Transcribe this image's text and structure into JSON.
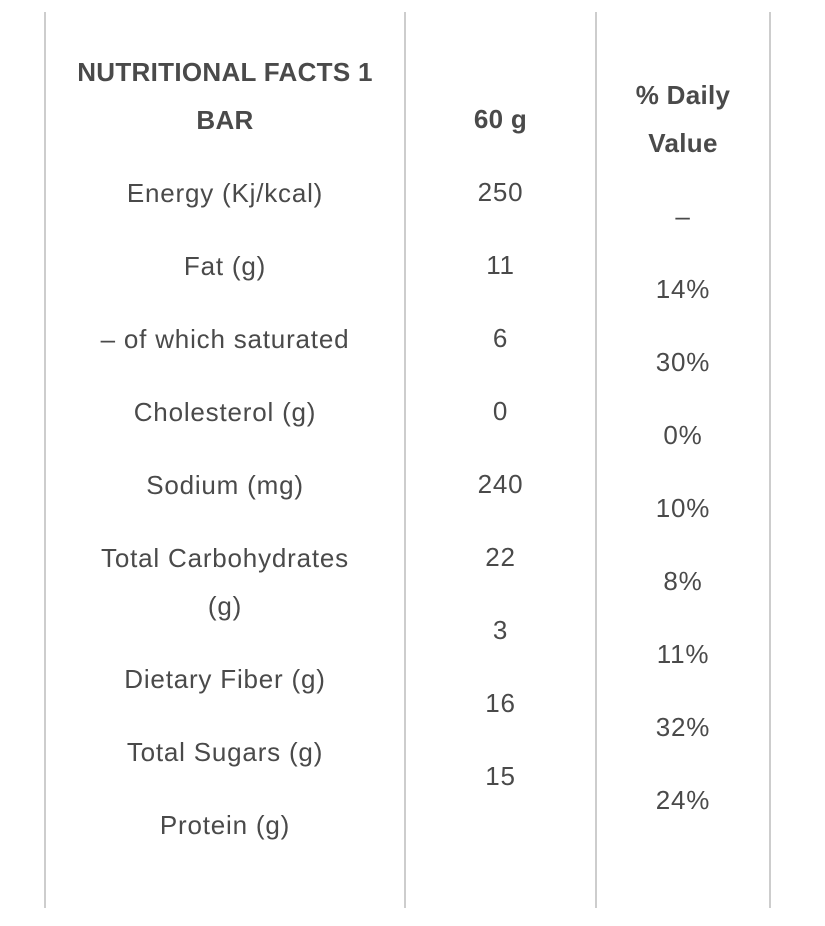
{
  "nutrition_table": {
    "header": {
      "label": "NUTRITIONAL FACTS 1 BAR",
      "amount": "60 g",
      "daily_value": "% Daily Value"
    },
    "rows": [
      {
        "label": "Energy (Kj/kcal)",
        "amount": "250",
        "daily_value": "–"
      },
      {
        "label": "Fat (g)",
        "amount": "11",
        "daily_value": "14%"
      },
      {
        "label": "– of which saturated",
        "amount": "6",
        "daily_value": "30%"
      },
      {
        "label": "Cholesterol (g)",
        "amount": "0",
        "daily_value": "0%"
      },
      {
        "label": "Sodium (mg)",
        "amount": "240",
        "daily_value": "10%"
      },
      {
        "label": "Total Carbohydrates (g)",
        "amount": "22",
        "daily_value": "8%"
      },
      {
        "label": "Dietary Fiber (g)",
        "amount": "3",
        "daily_value": "11%"
      },
      {
        "label": "Total Sugars (g)",
        "amount": "16",
        "daily_value": "32%"
      },
      {
        "label": "Protein (g)",
        "amount": "15",
        "daily_value": "24%"
      }
    ]
  },
  "colors": {
    "text": "#4a4a4a",
    "line": "#cdcdcd",
    "background": "#ffffff"
  }
}
